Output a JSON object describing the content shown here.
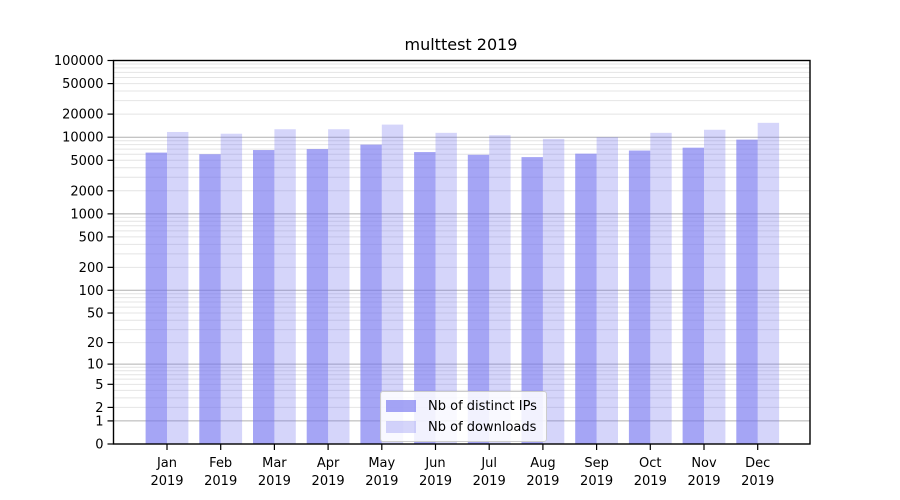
{
  "title": "multtest 2019",
  "colors": {
    "background": "#ffffff",
    "bar_base": "#7575f0",
    "ips_bar_effective": "#a5a5f5",
    "downloads_bar_effective": "#d6d6fa",
    "grid_major": "#b0b0b0",
    "grid_minor": "#e4e4e4",
    "axis": "#000000",
    "legend_border": "#cccccc"
  },
  "chart_data": {
    "type": "bar",
    "title": "multtest 2019",
    "year": "2019",
    "categories": [
      "Jan",
      "Feb",
      "Mar",
      "Apr",
      "May",
      "Jun",
      "Jul",
      "Aug",
      "Sep",
      "Oct",
      "Nov",
      "Dec"
    ],
    "x_tick_second_line": "2019",
    "series": [
      {
        "name": "Nb of distinct IPs",
        "color": "#7575f0",
        "opacity": 0.65,
        "values": [
          6300,
          6000,
          6800,
          7000,
          8000,
          6400,
          5900,
          5500,
          6100,
          6700,
          7300,
          9300
        ]
      },
      {
        "name": "Nb of downloads",
        "color": "#7575f0",
        "opacity": 0.3,
        "values": [
          11700,
          11100,
          12700,
          12700,
          14600,
          11400,
          10600,
          9500,
          10000,
          11400,
          12500,
          15400
        ]
      }
    ],
    "yscale": "log10(1+x)",
    "ylim": [
      0,
      100000
    ],
    "yticks": [
      0,
      1,
      2,
      5,
      10,
      20,
      50,
      100,
      200,
      500,
      1000,
      2000,
      5000,
      10000,
      20000,
      50000,
      100000
    ],
    "xlabel": "",
    "ylabel": "",
    "grid": true,
    "legend_position": "lower center"
  }
}
